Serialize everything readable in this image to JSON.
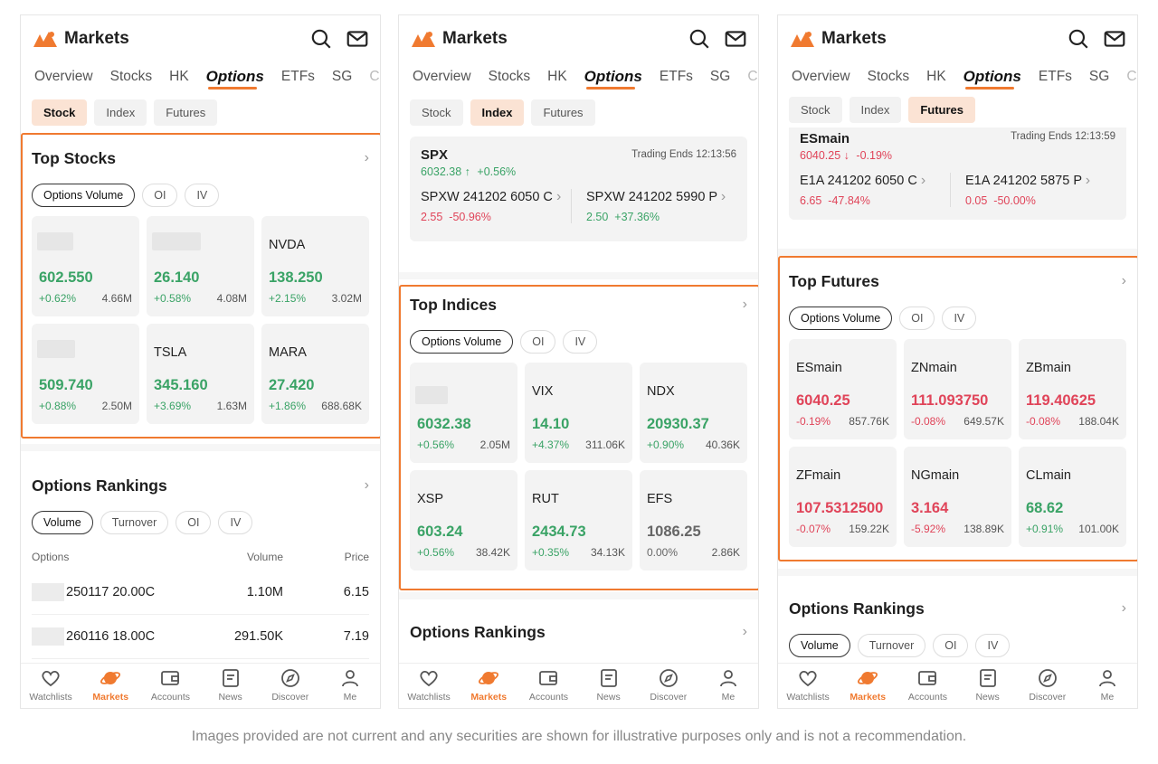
{
  "brand": "Markets",
  "nav_tabs": [
    "Overview",
    "Stocks",
    "HK",
    "Options",
    "ETFs",
    "SG",
    "Cl"
  ],
  "segments": [
    "Stock",
    "Index",
    "Futures"
  ],
  "pills_top": [
    "Options Volume",
    "OI",
    "IV"
  ],
  "pills_rank": [
    "Volume",
    "Turnover",
    "OI",
    "IV"
  ],
  "tabbar": [
    "Watchlists",
    "Markets",
    "Accounts",
    "News",
    "Discover",
    "Me"
  ],
  "colors": {
    "accent": "#f07a30",
    "positive": "#3aa366",
    "negative": "#e04459"
  },
  "phone1": {
    "section_title": "Top Stocks",
    "cards": [
      {
        "sym": "",
        "price": "602.550",
        "chg": "+0.62%",
        "vol": "4.66M",
        "dir": "pos"
      },
      {
        "sym": "",
        "price": "26.140",
        "chg": "+0.58%",
        "vol": "4.08M",
        "dir": "pos"
      },
      {
        "sym": "NVDA",
        "price": "138.250",
        "chg": "+2.15%",
        "vol": "3.02M",
        "dir": "pos"
      },
      {
        "sym": "",
        "price": "509.740",
        "chg": "+0.88%",
        "vol": "2.50M",
        "dir": "pos"
      },
      {
        "sym": "TSLA",
        "price": "345.160",
        "chg": "+3.69%",
        "vol": "1.63M",
        "dir": "pos"
      },
      {
        "sym": "MARA",
        "price": "27.420",
        "chg": "+1.86%",
        "vol": "688.68K",
        "dir": "pos"
      }
    ],
    "rankings": {
      "title": "Options Rankings",
      "headers": [
        "Options",
        "Volume",
        "Price"
      ],
      "rows": [
        {
          "name": "250117 20.00C",
          "vol": "1.10M",
          "price": "6.15"
        },
        {
          "name": "260116 18.00C",
          "vol": "291.50K",
          "price": "7.19"
        }
      ]
    }
  },
  "phone2": {
    "quote": {
      "sym": "SPX",
      "trade": "Trading Ends 12:13:56",
      "price": "6032.38",
      "arrow": "↑",
      "chg": "+0.56%",
      "contracts": [
        {
          "name": "SPXW 241202 6050 C",
          "price": "2.55",
          "chg": "-50.96%",
          "dir": "neg"
        },
        {
          "name": "SPXW 241202 5990 P",
          "price": "2.50",
          "chg": "+37.36%",
          "dir": "pos"
        }
      ]
    },
    "section_title": "Top Indices",
    "cards": [
      {
        "sym": "",
        "price": "6032.38",
        "chg": "+0.56%",
        "vol": "2.05M",
        "dir": "pos"
      },
      {
        "sym": "VIX",
        "price": "14.10",
        "chg": "+4.37%",
        "vol": "311.06K",
        "dir": "pos"
      },
      {
        "sym": "NDX",
        "price": "20930.37",
        "chg": "+0.90%",
        "vol": "40.36K",
        "dir": "pos"
      },
      {
        "sym": "XSP",
        "price": "603.24",
        "chg": "+0.56%",
        "vol": "38.42K",
        "dir": "pos"
      },
      {
        "sym": "RUT",
        "price": "2434.73",
        "chg": "+0.35%",
        "vol": "34.13K",
        "dir": "pos"
      },
      {
        "sym": "EFS",
        "price": "1086.25",
        "chg": "0.00%",
        "vol": "2.86K",
        "dir": "flat"
      }
    ],
    "rankings_title": "Options Rankings"
  },
  "phone3": {
    "quote": {
      "sym": "ESmain",
      "trade": "Trading Ends 12:13:59",
      "price": "6040.25",
      "arrow": "↓",
      "chg": "-0.19%",
      "contracts": [
        {
          "name": "E1A 241202 6050 C",
          "price": "6.65",
          "chg": "-47.84%",
          "dir": "neg"
        },
        {
          "name": "E1A 241202 5875 P",
          "price": "0.05",
          "chg": "-50.00%",
          "dir": "neg"
        }
      ]
    },
    "section_title": "Top Futures",
    "cards": [
      {
        "sym": "ESmain",
        "price": "6040.25",
        "chg": "-0.19%",
        "vol": "857.76K",
        "dir": "neg"
      },
      {
        "sym": "ZNmain",
        "price": "111.093750",
        "chg": "-0.08%",
        "vol": "649.57K",
        "dir": "neg"
      },
      {
        "sym": "ZBmain",
        "price": "119.40625",
        "chg": "-0.08%",
        "vol": "188.04K",
        "dir": "neg"
      },
      {
        "sym": "ZFmain",
        "price": "107.5312500",
        "chg": "-0.07%",
        "vol": "159.22K",
        "dir": "neg"
      },
      {
        "sym": "NGmain",
        "price": "3.164",
        "chg": "-5.92%",
        "vol": "138.89K",
        "dir": "neg"
      },
      {
        "sym": "CLmain",
        "price": "68.62",
        "chg": "+0.91%",
        "vol": "101.00K",
        "dir": "pos"
      }
    ],
    "rankings_title": "Options Rankings"
  },
  "disclaimer": "Images provided are not current and any securities are shown for illustrative purposes only and is not a recommendation."
}
